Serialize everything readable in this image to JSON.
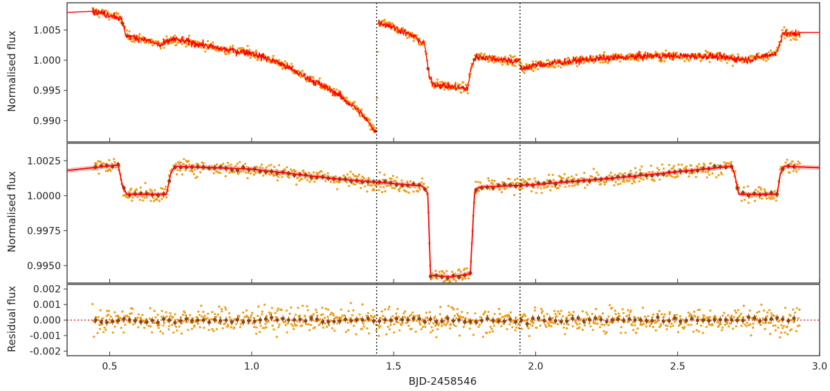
{
  "chart_data": {
    "type": "line",
    "xlabel": "BJD-2458546",
    "xlim": [
      0.35,
      3.0
    ],
    "x_ticks": [
      "0.5",
      "1.0",
      "1.5",
      "2.0",
      "2.5",
      "3.0"
    ],
    "vertical_markers": [
      1.44,
      1.945
    ],
    "colors": {
      "data_points": "#f39c12",
      "binned_points": "#8b4513",
      "model": "#ff0000",
      "model_band": "#f4a6a6",
      "zero_line": "#cc0000",
      "marker_lines": "#000000"
    },
    "panels": [
      {
        "id": "top",
        "ylabel": "Normalised flux",
        "ylim": [
          0.9865,
          1.0095
        ],
        "y_ticks": [
          "0.990",
          "0.995",
          "1.000",
          "1.005"
        ],
        "series": [
          {
            "role": "model",
            "style": "noisy-line",
            "x": [
              0.35,
              0.44,
              0.52,
              0.54,
              0.56,
              0.62,
              0.68,
              0.72,
              0.8,
              0.9,
              1.0,
              1.1,
              1.2,
              1.3,
              1.38,
              1.44,
              1.445,
              1.5,
              1.58,
              1.61,
              1.625,
              1.64,
              1.7,
              1.76,
              1.775,
              1.79,
              1.85,
              1.94,
              1.945,
              1.95,
              2.0,
              2.2,
              2.4,
              2.6,
              2.75,
              2.85,
              2.87,
              2.9,
              2.93,
              3.0
            ],
            "values": [
              1.0079,
              1.0081,
              1.0073,
              1.0068,
              1.004,
              1.0035,
              1.0024,
              1.0035,
              1.0028,
              1.0018,
              1.0012,
              0.9995,
              0.997,
              0.9945,
              0.9915,
              0.988,
              1.0063,
              1.0055,
              1.0037,
              1.0025,
              0.9972,
              0.9961,
              0.9956,
              0.9953,
              0.9992,
              1.0006,
              1.0003,
              0.9998,
              0.9993,
              0.9986,
              0.9992,
              1.0002,
              1.0007,
              1.0007,
              1.0001,
              1.0012,
              1.0046,
              1.0042,
              1.0046,
              1.0046
            ]
          }
        ]
      },
      {
        "id": "middle",
        "ylabel": "Normalised flux",
        "ylim": [
          0.99375,
          1.00375
        ],
        "y_ticks": [
          "0.9950",
          "0.9975",
          "1.0000",
          "1.0025"
        ],
        "series": [
          {
            "role": "model",
            "x": [
              0.35,
              0.44,
              0.53,
              0.545,
              0.56,
              0.7,
              0.715,
              0.73,
              1.0,
              1.3,
              1.6,
              1.62,
              1.63,
              1.7,
              1.77,
              1.785,
              1.8,
              2.0,
              2.3,
              2.69,
              2.7,
              2.715,
              2.85,
              2.862,
              2.875,
              3.0
            ],
            "values": [
              1.0018,
              1.002,
              1.0022,
              1.0007,
              1.0001,
              1.0001,
              1.0016,
              1.0021,
              1.0019,
              1.0012,
              1.0007,
              1.0002,
              0.9943,
              0.9942,
              0.9944,
              1.0003,
              1.0006,
              1.0008,
              1.0013,
              1.0021,
              1.0016,
              1.0001,
              1.0001,
              1.0016,
              1.0021,
              1.002
            ]
          }
        ]
      },
      {
        "id": "bottom",
        "ylabel": "Residual flux",
        "ylim": [
          -0.0023,
          0.0023
        ],
        "y_ticks": [
          "0.002",
          "0.001",
          "0.000",
          "-0.001",
          "-0.002"
        ],
        "zero_line": 0.0,
        "data_range": [
          0.44,
          2.93
        ]
      }
    ]
  }
}
